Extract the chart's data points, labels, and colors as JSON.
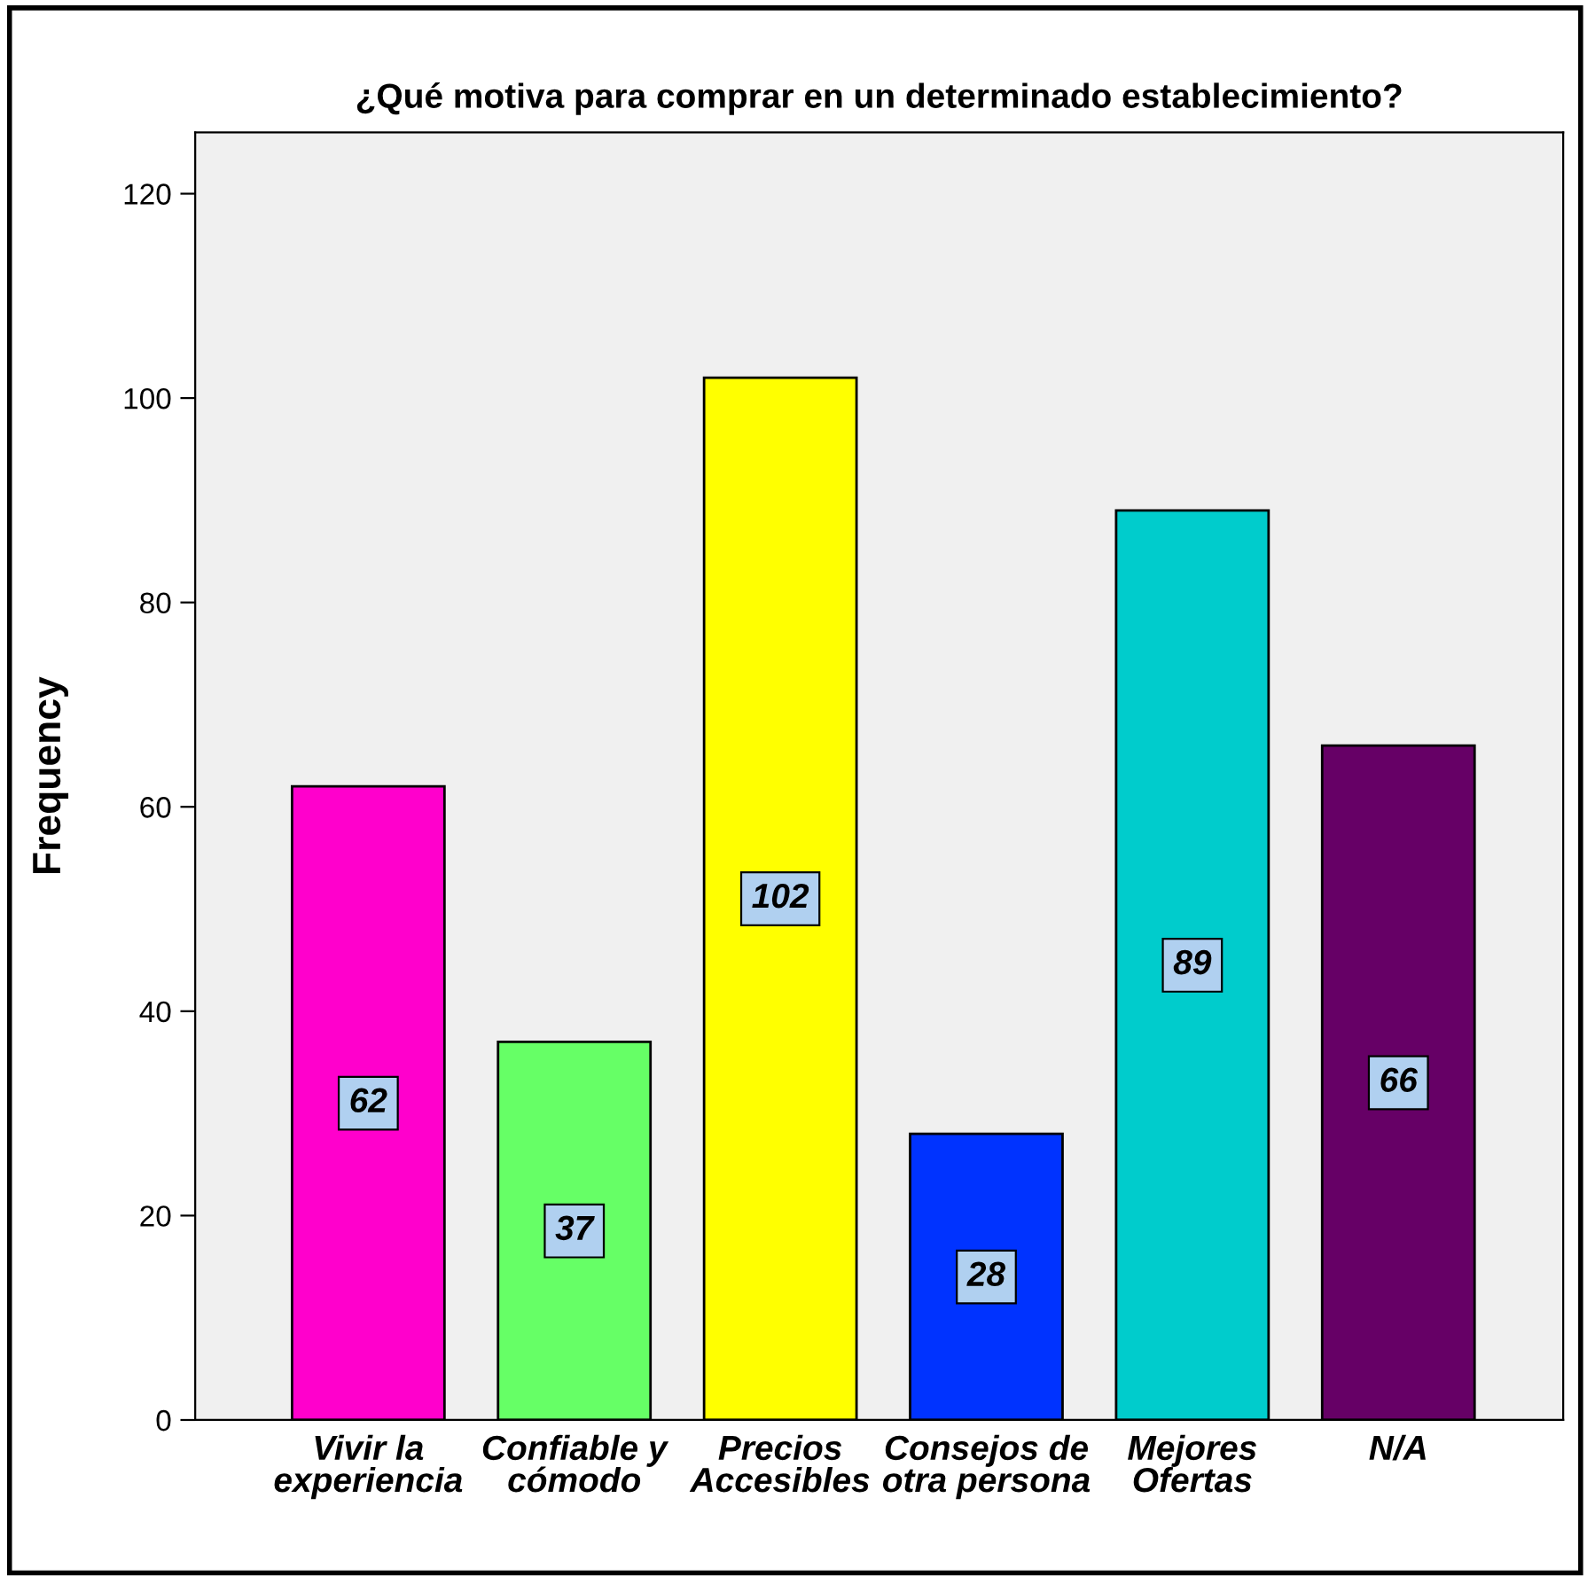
{
  "chart_data": {
    "type": "bar",
    "title": "¿Qué motiva para comprar en un determinado establecimiento?",
    "ylabel": "Frequency",
    "categories": [
      "Vivir la\nexperiencia",
      "Confiable y\ncómodo",
      "Precios\nAccesibles",
      "Consejos de\notra persona",
      "Mejores\nOfertas",
      "N/A"
    ],
    "values": [
      62,
      37,
      102,
      28,
      89,
      66
    ],
    "colors": [
      "#ff00cc",
      "#66ff66",
      "#ffff00",
      "#0033ff",
      "#00cccc",
      "#660066"
    ],
    "ylim": [
      0,
      126
    ],
    "yticks": [
      0,
      20,
      40,
      60,
      80,
      100,
      120
    ],
    "grid": false,
    "data_labels": true
  }
}
